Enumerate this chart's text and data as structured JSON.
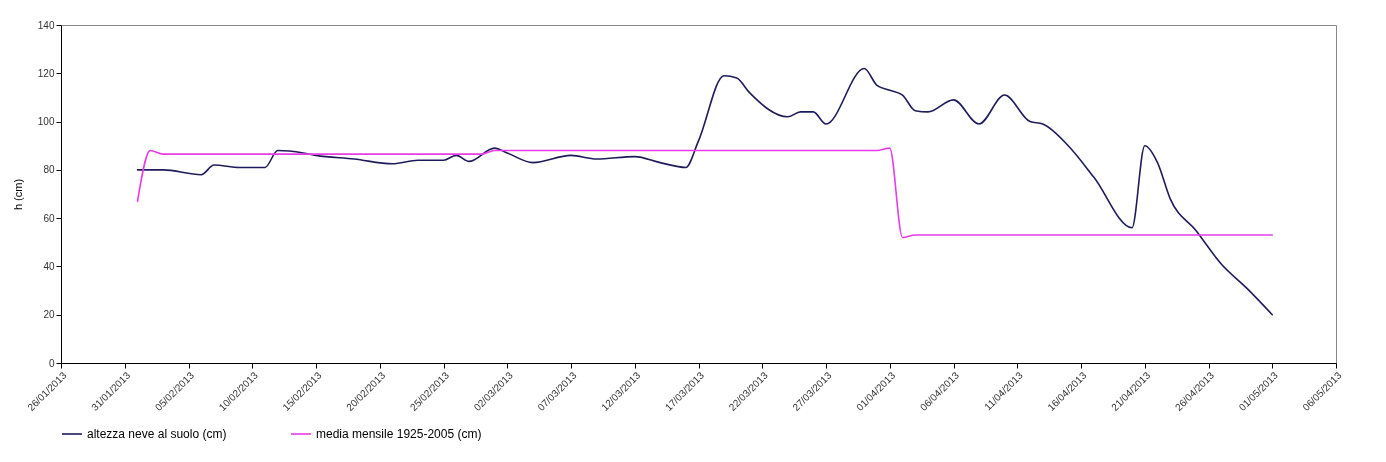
{
  "chart_data": {
    "type": "line",
    "ylabel": "h (cm)",
    "legend": "bottom",
    "marker": "none",
    "line_style": "solid",
    "grid": false,
    "xlim": [
      "2013-01-26",
      "2013-05-06"
    ],
    "xticks": [
      {
        "value": "2013-01-26",
        "label": "26/01/2013"
      },
      {
        "value": "2013-01-31",
        "label": "31/01/2013"
      },
      {
        "value": "2013-02-05",
        "label": "05/02/2013"
      },
      {
        "value": "2013-02-10",
        "label": "10/02/2013"
      },
      {
        "value": "2013-02-15",
        "label": "15/02/2013"
      },
      {
        "value": "2013-02-20",
        "label": "20/02/2013"
      },
      {
        "value": "2013-02-25",
        "label": "25/02/2013"
      },
      {
        "value": "2013-03-02",
        "label": "02/03/2013"
      },
      {
        "value": "2013-03-07",
        "label": "07/03/2013"
      },
      {
        "value": "2013-03-12",
        "label": "12/03/2013"
      },
      {
        "value": "2013-03-17",
        "label": "17/03/2013"
      },
      {
        "value": "2013-03-22",
        "label": "22/03/2013"
      },
      {
        "value": "2013-03-27",
        "label": "27/03/2013"
      },
      {
        "value": "2013-04-01",
        "label": "01/04/2013"
      },
      {
        "value": "2013-04-06",
        "label": "06/04/2013"
      },
      {
        "value": "2013-04-11",
        "label": "11/04/2013"
      },
      {
        "value": "2013-04-16",
        "label": "16/04/2013"
      },
      {
        "value": "2013-04-21",
        "label": "21/04/2013"
      },
      {
        "value": "2013-04-26",
        "label": "26/04/2013"
      },
      {
        "value": "2013-05-01",
        "label": "01/05/2013"
      },
      {
        "value": "2013-05-06",
        "label": "06/05/2013"
      }
    ],
    "ylim": [
      0,
      140
    ],
    "yticks": [
      0,
      20,
      40,
      60,
      80,
      100,
      120,
      140
    ],
    "series": [
      {
        "name": "altezza neve al suolo (cm)",
        "color": "#1f1c5c",
        "x": [
          "2013-02-01",
          "2013-02-03",
          "2013-02-06",
          "2013-02-07",
          "2013-02-09",
          "2013-02-11",
          "2013-02-12",
          "2013-02-14",
          "2013-02-15",
          "2013-02-18",
          "2013-02-21",
          "2013-02-23",
          "2013-02-25",
          "2013-02-26",
          "2013-02-27",
          "2013-03-01",
          "2013-03-02",
          "2013-03-04",
          "2013-03-07",
          "2013-03-09",
          "2013-03-12",
          "2013-03-14",
          "2013-03-16",
          "2013-03-17",
          "2013-03-19",
          "2013-03-20",
          "2013-03-21",
          "2013-03-24",
          "2013-03-25",
          "2013-03-26",
          "2013-03-27",
          "2013-03-30",
          "2013-03-31",
          "2013-04-01",
          "2013-04-02",
          "2013-04-03",
          "2013-04-04",
          "2013-04-06",
          "2013-04-08",
          "2013-04-10",
          "2013-04-12",
          "2013-04-13",
          "2013-04-15",
          "2013-04-17",
          "2013-04-20",
          "2013-04-21",
          "2013-04-22",
          "2013-04-23",
          "2013-04-25",
          "2013-04-27",
          "2013-04-29",
          "2013-05-01"
        ],
        "values": [
          80,
          80,
          78,
          82,
          81,
          81,
          88,
          87,
          86,
          84.5,
          82.5,
          84,
          84,
          86,
          83.5,
          89,
          87,
          83,
          86,
          84.5,
          85.5,
          83,
          81,
          92,
          119,
          118,
          112,
          102,
          104,
          104,
          99,
          122,
          115,
          113,
          111,
          104.5,
          104,
          109,
          99,
          111,
          100,
          99,
          90,
          77,
          56,
          90,
          83,
          68,
          55,
          41,
          31,
          20
        ]
      },
      {
        "name": "media mensile 1925-2005 (cm)",
        "color": "#e83ce8",
        "x": [
          "2013-02-01",
          "2013-02-02",
          "2013-02-03",
          "2013-02-28",
          "2013-03-01",
          "2013-03-31",
          "2013-04-01",
          "2013-04-02",
          "2013-04-03",
          "2013-05-01"
        ],
        "values": [
          67,
          88,
          86.5,
          86.5,
          88,
          88,
          89,
          52,
          53,
          53
        ]
      }
    ]
  }
}
